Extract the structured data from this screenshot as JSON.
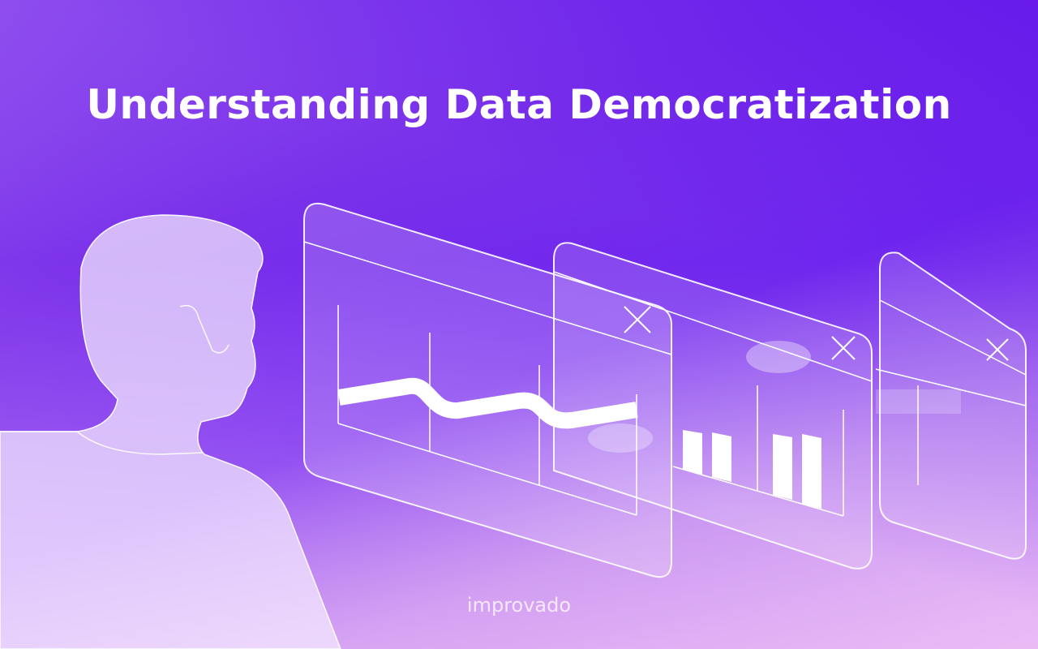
{
  "title": "Understanding Data Democratization",
  "logo": "improvado",
  "colors": {
    "background_top": "#6a1ff0",
    "background_bottom": "#e2b6f6",
    "line": "#ffffff"
  },
  "icons": [
    "close-icon",
    "close-icon",
    "close-icon"
  ]
}
